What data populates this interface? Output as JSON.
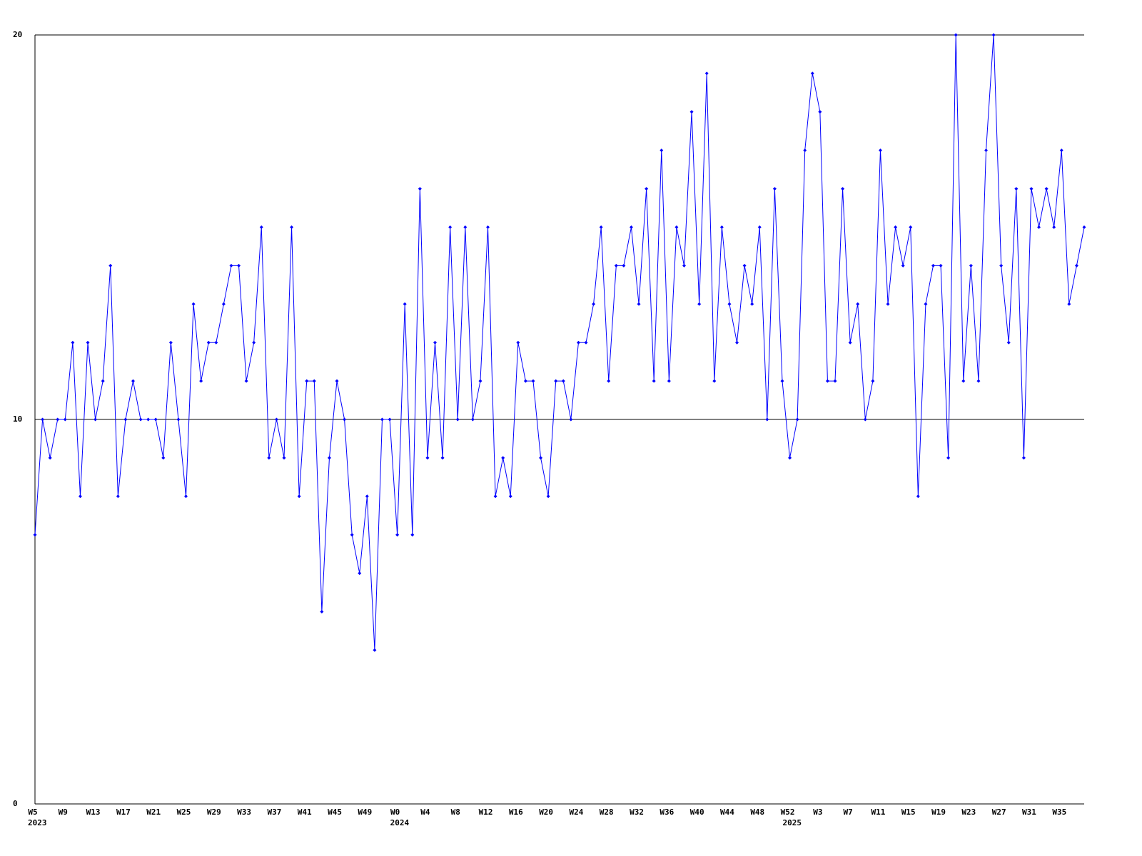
{
  "chart_data": {
    "type": "line",
    "categories": [
      "W5",
      null,
      null,
      null,
      "W9",
      null,
      null,
      null,
      "W13",
      null,
      null,
      null,
      "W17",
      null,
      null,
      null,
      "W21",
      null,
      null,
      null,
      "W25",
      null,
      null,
      null,
      "W29",
      null,
      null,
      null,
      "W33",
      null,
      null,
      null,
      "W37",
      null,
      null,
      null,
      "W41",
      null,
      null,
      null,
      "W45",
      null,
      null,
      null,
      "W49",
      null,
      null,
      null,
      "W0",
      null,
      null,
      null,
      "W4",
      null,
      null,
      null,
      "W8",
      null,
      null,
      null,
      "W12",
      null,
      null,
      null,
      "W16",
      null,
      null,
      null,
      "W20",
      null,
      null,
      null,
      "W24",
      null,
      null,
      null,
      "W28",
      null,
      null,
      null,
      "W32",
      null,
      null,
      null,
      "W36",
      null,
      null,
      null,
      "W40",
      null,
      null,
      null,
      "W44",
      null,
      null,
      null,
      "W48",
      null,
      null,
      null,
      "W52",
      null,
      null,
      null,
      "W3",
      null,
      null,
      null,
      "W7",
      null,
      null,
      null,
      "W11",
      null,
      null,
      null,
      "W15",
      null,
      null,
      null,
      "W19",
      null,
      null,
      null,
      "W23",
      null,
      null,
      null,
      "W27",
      null,
      null,
      null,
      "W31",
      null,
      null,
      null,
      "W35",
      null,
      null,
      null
    ],
    "x_sublabels": [
      "2023",
      null,
      null,
      null,
      null,
      null,
      null,
      null,
      null,
      null,
      null,
      null,
      null,
      null,
      null,
      null,
      null,
      null,
      null,
      null,
      null,
      null,
      null,
      null,
      null,
      null,
      null,
      null,
      null,
      null,
      null,
      null,
      null,
      null,
      null,
      null,
      null,
      null,
      null,
      null,
      null,
      null,
      null,
      null,
      null,
      null,
      null,
      null,
      "2024",
      null,
      null,
      null,
      null,
      null,
      null,
      null,
      null,
      null,
      null,
      null,
      null,
      null,
      null,
      null,
      null,
      null,
      null,
      null,
      null,
      null,
      null,
      null,
      null,
      null,
      null,
      null,
      null,
      null,
      null,
      null,
      null,
      null,
      null,
      null,
      null,
      null,
      null,
      null,
      null,
      null,
      null,
      null,
      null,
      null,
      null,
      null,
      null,
      null,
      null,
      null,
      "2025",
      null,
      null,
      null,
      null,
      null,
      null,
      null,
      null,
      null,
      null,
      null,
      null,
      null,
      null,
      null,
      null,
      null,
      null,
      null,
      null,
      null,
      null,
      null,
      null,
      null,
      null,
      null,
      null,
      null,
      null,
      null,
      null,
      null,
      null,
      null,
      null,
      null,
      null,
      null
    ],
    "series": [
      {
        "color": "#0000ff",
        "values": [
          7,
          10,
          9,
          10,
          10,
          12,
          8,
          12,
          10,
          11,
          14,
          8,
          10,
          11,
          10,
          10,
          10,
          9,
          12,
          10,
          8,
          13,
          11,
          12,
          12,
          13,
          14,
          14,
          11,
          12,
          15,
          9,
          10,
          9,
          15,
          8,
          11,
          11,
          5,
          9,
          11,
          10,
          7,
          6,
          8,
          4,
          10,
          10,
          7,
          13,
          7,
          16,
          9,
          12,
          9,
          15,
          10,
          15,
          10,
          11,
          15,
          8,
          9,
          8,
          12,
          11,
          11,
          9,
          8,
          11,
          11,
          10,
          12,
          12,
          13,
          15,
          11,
          14,
          14,
          15,
          13,
          16,
          11,
          17,
          11,
          15,
          14,
          18,
          13,
          19,
          11,
          15,
          13,
          12,
          14,
          13,
          15,
          10,
          16,
          11,
          9,
          10,
          17,
          19,
          18,
          11,
          11,
          16,
          12,
          13,
          10,
          11,
          17,
          13,
          15,
          14,
          15,
          8,
          13,
          14,
          14,
          9,
          20,
          11,
          14,
          11,
          17,
          20,
          14,
          12,
          16,
          9,
          16,
          15,
          16,
          15,
          17,
          13,
          14,
          15
        ]
      }
    ],
    "ylim": [
      0,
      20
    ],
    "yticks": [
      0,
      10,
      20
    ],
    "grid": true
  }
}
